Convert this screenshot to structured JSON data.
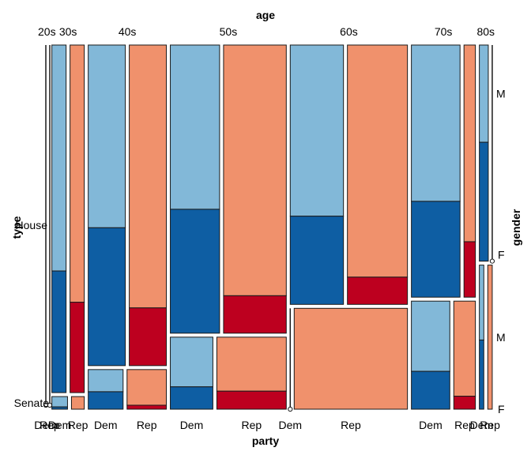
{
  "chart_data": {
    "type": "mosaic",
    "title": "",
    "axis_titles": {
      "top": "age",
      "bottom": "party",
      "left": "type",
      "right": "gender"
    },
    "age_groups": [
      "20s",
      "30s",
      "40s",
      "50s",
      "60s",
      "70s",
      "80s"
    ],
    "types": [
      "House",
      "Senate"
    ],
    "parties": [
      "Dem",
      "Rep"
    ],
    "genders": [
      "M",
      "F"
    ],
    "gender_tick_labels": {
      "House": {
        "M": "M",
        "F": "F"
      },
      "Senate": {
        "M": "M",
        "F": "F"
      }
    },
    "party_tick_labels": [
      {
        "age": "20s",
        "party": "Dem",
        "text": "Dem"
      },
      {
        "age": "20s",
        "party": "Rep",
        "text": "Rep"
      },
      {
        "age": "30s",
        "party": "Dem",
        "text": "Dem"
      },
      {
        "age": "30s",
        "party": "Rep",
        "text": "Rep"
      },
      {
        "age": "40s",
        "party": "Dem",
        "text": "Dem"
      },
      {
        "age": "40s",
        "party": "Rep",
        "text": "Rep"
      },
      {
        "age": "50s",
        "party": "Dem",
        "text": "Dem"
      },
      {
        "age": "50s",
        "party": "Rep",
        "text": "Rep"
      },
      {
        "age": "60s",
        "party": "Dem",
        "text": "Dem"
      },
      {
        "age": "60s",
        "party": "Rep",
        "text": "Rep"
      },
      {
        "age": "70s",
        "party": "Dem",
        "text": "Dem"
      },
      {
        "age": "70s",
        "party": "Rep",
        "text": "Rep"
      },
      {
        "age": "80s",
        "party": "Dem",
        "text": "Dem"
      },
      {
        "age": "80s",
        "party": "Rep",
        "text": "Rep"
      }
    ],
    "colors": {
      "Dem": {
        "M": "#82b8d8",
        "F": "#0e5ea3"
      },
      "Rep": {
        "M": "#f0916c",
        "F": "#bd001f"
      }
    },
    "age_share": {
      "20s": 0.005,
      "30s": 0.078,
      "40s": 0.188,
      "50s": 0.279,
      "60s": 0.282,
      "70s": 0.154,
      "80s": 0.031
    },
    "house_share_by_age": {
      "20s": 1.0,
      "30s": 0.965,
      "40s": 0.89,
      "50s": 0.8,
      "60s": 0.72,
      "70s": 0.7,
      "80s": 0.6
    },
    "party_share": {
      "House": {
        "20s": {
          "Dem": 0.0,
          "Rep": 0.0
        },
        "30s": {
          "Dem": 0.5,
          "Rep": 0.5
        },
        "40s": {
          "Dem": 0.5,
          "Rep": 0.5
        },
        "50s": {
          "Dem": 0.44,
          "Rep": 0.56
        },
        "60s": {
          "Dem": 0.47,
          "Rep": 0.53
        },
        "70s": {
          "Dem": 0.81,
          "Rep": 0.19
        },
        "80s": {
          "Dem": 1.0,
          "Rep": 0.0
        }
      },
      "Senate": {
        "20s": {
          "Dem": 0.0,
          "Rep": 0.0
        },
        "30s": {
          "Dem": 0.55,
          "Rep": 0.45
        },
        "40s": {
          "Dem": 0.47,
          "Rep": 0.53
        },
        "50s": {
          "Dem": 0.38,
          "Rep": 0.62
        },
        "60s": {
          "Dem": 0.0,
          "Rep": 1.0
        },
        "70s": {
          "Dem": 0.64,
          "Rep": 0.36
        },
        "80s": {
          "Dem": 0.5,
          "Rep": 0.5
        }
      }
    },
    "female_share": {
      "House": {
        "30s": {
          "Dem": 0.35,
          "Rep": 0.26
        },
        "40s": {
          "Dem": 0.43,
          "Rep": 0.18
        },
        "50s": {
          "Dem": 0.43,
          "Rep": 0.13
        },
        "60s": {
          "Dem": 0.34,
          "Rep": 0.105
        },
        "70s": {
          "Dem": 0.38,
          "Rep": 0.22
        },
        "80s": {
          "Dem": 0.55,
          "Rep": 0.0
        }
      },
      "Senate": {
        "30s": {
          "Dem": 0.18,
          "Rep": 0.0
        },
        "40s": {
          "Dem": 0.44,
          "Rep": 0.1
        },
        "50s": {
          "Dem": 0.31,
          "Rep": 0.25
        },
        "60s": {
          "Dem": 0.0,
          "Rep": 0.0
        },
        "70s": {
          "Dem": 0.35,
          "Rep": 0.12
        },
        "80s": {
          "Dem": 0.48,
          "Rep": 0.0
        }
      }
    }
  }
}
